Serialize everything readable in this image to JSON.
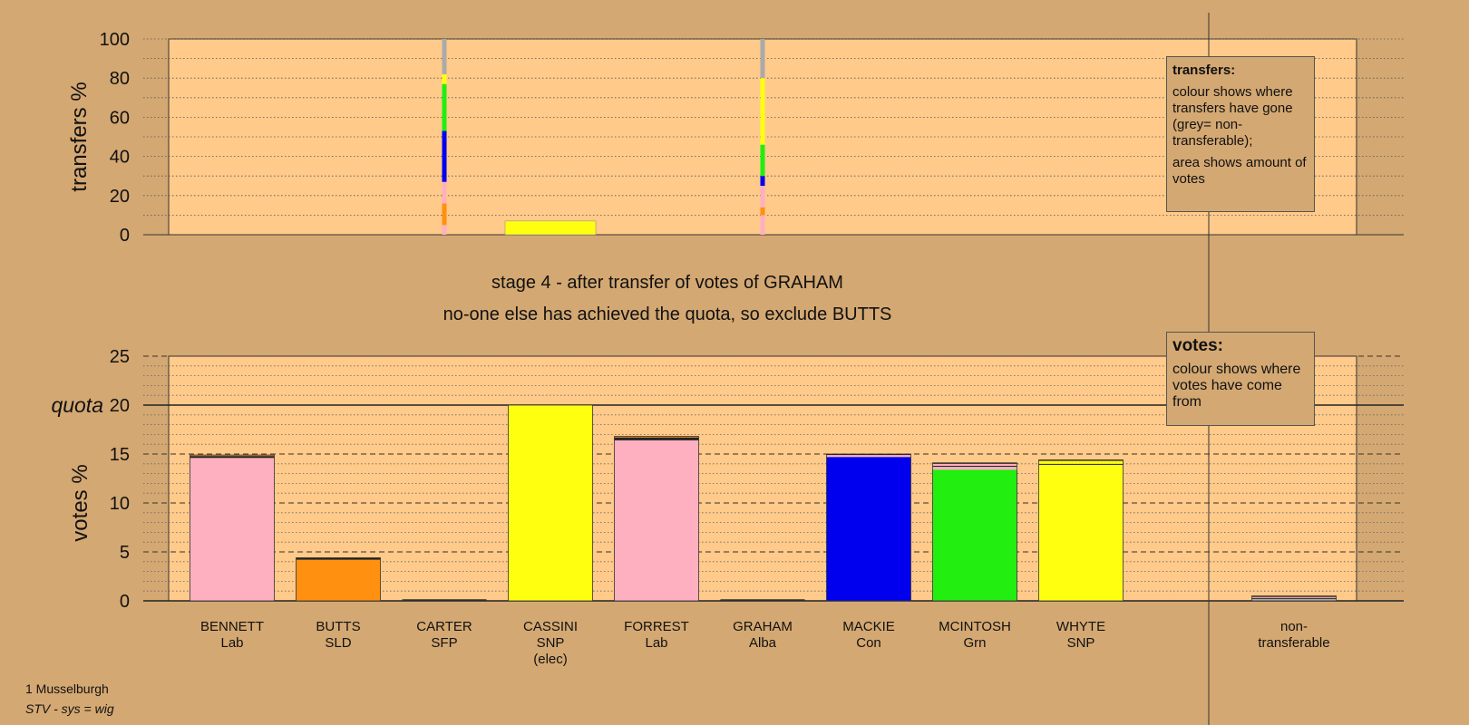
{
  "colors": {
    "background": "#d4a872",
    "plot_bg": "#ffca8a",
    "nontransferable": "#aaaaaa"
  },
  "stage_title": "stage 4 - after transfer of votes of GRAHAM",
  "stage_subtitle": "no-one else has achieved the quota, so exclude BUTTS",
  "transfers_legend": {
    "heading": "transfers:",
    "line1": "colour shows where transfers have gone (grey= non-transferable);",
    "line2": "area shows amount of votes"
  },
  "votes_legend": {
    "heading": "votes:",
    "line1": "colour shows where votes have come from"
  },
  "footer": {
    "ward": "1 Musselburgh",
    "system": "STV - sys = wig"
  },
  "chart_data": [
    {
      "type": "bar",
      "name": "transfers",
      "ylabel": "transfers %",
      "ylim": [
        0,
        100
      ],
      "yticks": [
        0,
        20,
        40,
        60,
        80,
        100
      ],
      "grid": true,
      "columns": [
        {
          "candidate": "CARTER",
          "stack": [
            {
              "color": "#ffb0c0",
              "value": 5
            },
            {
              "color": "#ff9010",
              "value": 11
            },
            {
              "color": "#ffb0c0",
              "value": 11
            },
            {
              "color": "#0000ee",
              "value": 26
            },
            {
              "color": "#22ee10",
              "value": 24
            },
            {
              "color": "#ffff10",
              "value": 5
            },
            {
              "color": "#aaaaaa",
              "value": 18
            }
          ]
        },
        {
          "candidate": "CASSINI",
          "stack": [
            {
              "color": "#ffff10",
              "value": 7
            }
          ]
        },
        {
          "candidate": "GRAHAM",
          "stack": [
            {
              "color": "#ffb0c0",
              "value": 10
            },
            {
              "color": "#ff9010",
              "value": 4
            },
            {
              "color": "#ffb0c0",
              "value": 11
            },
            {
              "color": "#0000ee",
              "value": 5
            },
            {
              "color": "#22ee10",
              "value": 16
            },
            {
              "color": "#ffff10",
              "value": 34
            },
            {
              "color": "#aaaaaa",
              "value": 20
            }
          ]
        }
      ]
    },
    {
      "type": "bar",
      "name": "votes",
      "ylabel": "votes %",
      "ylim": [
        0,
        25
      ],
      "yticks": [
        0,
        5,
        10,
        15,
        20,
        25
      ],
      "quota": 20,
      "quota_label": "quota",
      "grid": true,
      "candidates": [
        {
          "name": "BENNETT",
          "party": "Lab",
          "stack": [
            {
              "color": "#ffb0c0",
              "value": 14.6
            },
            {
              "color": "#222222",
              "value": 0.2
            },
            {
              "color": "#ff9010",
              "value": 0.1
            }
          ]
        },
        {
          "name": "BUTTS",
          "party": "SLD",
          "stack": [
            {
              "color": "#ff9010",
              "value": 4.2
            },
            {
              "color": "#222222",
              "value": 0.2
            }
          ]
        },
        {
          "name": "CARTER",
          "party": "SFP",
          "stack": [
            {
              "color": "#ffb0c0",
              "value": 0
            }
          ]
        },
        {
          "name": "CASSINI",
          "party": "SNP",
          "note": "(elec)",
          "stack": [
            {
              "color": "#ffff10",
              "value": 20
            }
          ]
        },
        {
          "name": "FORREST",
          "party": "Lab",
          "stack": [
            {
              "color": "#ffb0c0",
              "value": 16.4
            },
            {
              "color": "#222222",
              "value": 0.3
            },
            {
              "color": "#ff9010",
              "value": 0.1
            }
          ]
        },
        {
          "name": "GRAHAM",
          "party": "Alba",
          "stack": [
            {
              "color": "#ffff10",
              "value": 0
            }
          ]
        },
        {
          "name": "MACKIE",
          "party": "Con",
          "stack": [
            {
              "color": "#0000ee",
              "value": 14.7
            },
            {
              "color": "#ffb0c0",
              "value": 0.2
            },
            {
              "color": "#222222",
              "value": 0.1
            }
          ]
        },
        {
          "name": "MCINTOSH",
          "party": "Grn",
          "stack": [
            {
              "color": "#22ee10",
              "value": 13.4
            },
            {
              "color": "#ffb0c0",
              "value": 0.3
            },
            {
              "color": "#222222",
              "value": 0.1
            },
            {
              "color": "#ffb0c0",
              "value": 0.2
            },
            {
              "color": "#222222",
              "value": 0.1
            }
          ]
        },
        {
          "name": "WHYTE",
          "party": "SNP",
          "stack": [
            {
              "color": "#ffff10",
              "value": 12.6
            },
            {
              "color": "#ffff10",
              "value": 1.3
            },
            {
              "color": "#222222",
              "value": 0.1
            },
            {
              "color": "#ffff10",
              "value": 0.3
            },
            {
              "color": "#222222",
              "value": 0.1
            }
          ]
        }
      ],
      "nontransferable": {
        "label": "non-transferable",
        "stack": [
          {
            "color": "#aaaaaa",
            "value": 0.2
          },
          {
            "color": "#222222",
            "value": 0.1
          },
          {
            "color": "#ffb0c0",
            "value": 0.1
          },
          {
            "color": "#222222",
            "value": 0.1
          }
        ]
      }
    }
  ]
}
